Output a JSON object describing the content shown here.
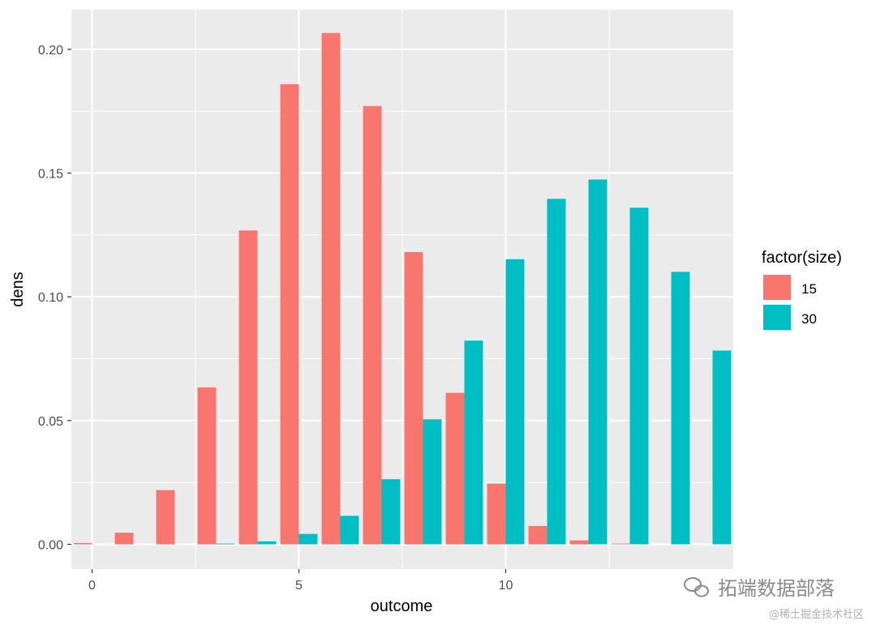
{
  "chart_data": {
    "type": "bar",
    "title": "",
    "xlabel": "outcome",
    "ylabel": "dens",
    "xlim": [
      -0.5,
      15.5
    ],
    "ylim": [
      -0.01,
      0.216
    ],
    "x_ticks": [
      0,
      5,
      10
    ],
    "x_tick_labels": [
      "0",
      "5",
      "10"
    ],
    "y_ticks": [
      0.0,
      0.05,
      0.1,
      0.15,
      0.2
    ],
    "y_tick_labels": [
      "0.00",
      "0.05",
      "0.10",
      "0.15",
      "0.20"
    ],
    "grid": true,
    "position": "dodge",
    "legend": {
      "title": "factor(size)",
      "placement": "right"
    },
    "x": [
      0,
      1,
      2,
      3,
      4,
      5,
      6,
      7,
      8,
      9,
      10,
      11,
      12,
      13,
      14,
      15
    ],
    "series": [
      {
        "name": "15",
        "color": "#F8766D",
        "values": [
          0.0005,
          0.0047,
          0.0219,
          0.0634,
          0.1268,
          0.1859,
          0.2066,
          0.1771,
          0.1181,
          0.0612,
          0.0245,
          0.0074,
          0.0016,
          0.0003,
          0.0,
          0.0
        ]
      },
      {
        "name": "30",
        "color": "#00BFC4",
        "values": [
          0.0,
          0.0,
          0.0,
          0.0003,
          0.0012,
          0.0042,
          0.0115,
          0.0263,
          0.0505,
          0.0823,
          0.1152,
          0.1396,
          0.1474,
          0.136,
          0.1101,
          0.0783
        ]
      }
    ]
  },
  "watermark": {
    "main": "拓端数据部落",
    "sub": "@稀土掘金技术社区"
  },
  "colors": {
    "panel": "#EBEBEB",
    "grid": "#FFFFFF",
    "tick": "#333333"
  }
}
